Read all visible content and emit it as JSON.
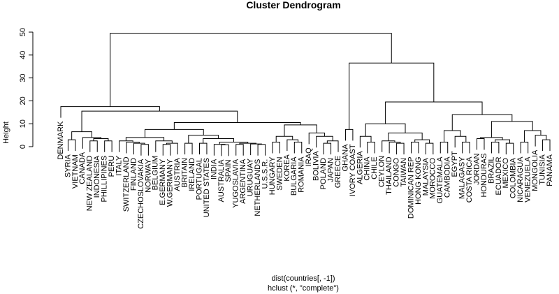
{
  "chart_data": {
    "type": "dendrogram",
    "title": "Cluster Dendrogram",
    "y_label": "Height",
    "x_label": "dist(countries[, -1])",
    "x_sublabel": "hclust (*, \"complete\")",
    "ylim": [
      0,
      50
    ],
    "yticks": [
      0,
      10,
      20,
      30,
      40,
      50
    ],
    "tree": {
      "height": 49.5,
      "children": [
        {
          "height": 17.5,
          "children": [
            "DENMARK",
            {
              "height": 15.5,
              "children": [
                {
                  "height": 6.5,
                  "children": [
                    {
                      "height": 3,
                      "children": [
                        "SYRIA",
                        "VIETNAM"
                      ]
                    },
                    {
                      "height": 4,
                      "children": [
                        "CANADA",
                        {
                          "height": 3.5,
                          "children": [
                            {
                              "height": 2.5,
                              "children": [
                                "NEW ZEALAND",
                                "INDONESIA"
                              ]
                            },
                            {
                              "height": 2.5,
                              "children": [
                                "PHILLIPINES",
                                "PERU"
                              ]
                            }
                          ]
                        }
                      ]
                    }
                  ]
                },
                {
                  "height": 10.5,
                  "children": [
                    {
                      "height": 7.5,
                      "children": [
                        {
                          "height": 4,
                          "children": [
                            {
                              "height": 2.5,
                              "children": [
                                "ITALY",
                                {
                                  "height": 2,
                                  "children": [
                                    "SWITZERLAND",
                                    {
                                      "height": 1.5,
                                      "children": [
                                        "FINLAND",
                                        {
                                          "height": 1,
                                          "children": [
                                            "CZECHOSLOVAKIA",
                                            "NORWAY"
                                          ]
                                        }
                                      ]
                                    }
                                  ]
                                }
                              ]
                            },
                            {
                              "height": 2.5,
                              "children": [
                                "BELGIUM",
                                {
                                  "height": 1.5,
                                  "children": [
                                    {
                                      "height": 1,
                                      "children": [
                                        "E.GERMANY",
                                        "W.GERMANY"
                                      ]
                                    },
                                    "AUSTRIA"
                                  ]
                                }
                              ]
                            }
                          ]
                        },
                        {
                          "height": 5,
                          "children": [
                            {
                              "height": 1.5,
                              "children": [
                                "BRITAIN",
                                "IRELAND"
                              ]
                            },
                            {
                              "height": 3.5,
                              "children": [
                                {
                                  "height": 1.5,
                                  "children": [
                                    "PORTUGAL",
                                    "UNITED STATES"
                                  ]
                                },
                                {
                                  "height": 2,
                                  "children": [
                                    {
                                      "height": 1,
                                      "children": [
                                        "INDIA",
                                        {
                                          "height": 0.8,
                                          "children": [
                                            "AUSTRALIA",
                                            "SPAIN"
                                          ]
                                        }
                                      ]
                                    },
                                    {
                                      "height": 1.5,
                                      "children": [
                                        {
                                          "height": 1,
                                          "children": [
                                            "YUGOSLAVIA",
                                            "ARGENTINA"
                                          ]
                                        },
                                        {
                                          "height": 1.2,
                                          "children": [
                                            "URUGUAY",
                                            {
                                              "height": 1,
                                              "children": [
                                                "NETHERLANDS",
                                                "U.S.S.R."
                                              ]
                                            }
                                          ]
                                        }
                                      ]
                                    }
                                  ]
                                }
                              ]
                            }
                          ]
                        }
                      ]
                    },
                    {
                      "height": 9.5,
                      "children": [
                        {
                          "height": 4.5,
                          "children": [
                            {
                              "height": 2,
                              "children": [
                                "HUNGARY",
                                "SWEDEN"
                              ]
                            },
                            {
                              "height": 3,
                              "children": [
                                "KOREA",
                                {
                                  "height": 2,
                                  "children": [
                                    "BULGARIA",
                                    "ROMANIA"
                                  ]
                                }
                              ]
                            }
                          ]
                        },
                        {
                          "height": 6,
                          "children": [
                            "IRAQ",
                            {
                              "height": 4.5,
                              "children": [
                                "BOLIVIA",
                                {
                                  "height": 2.5,
                                  "children": [
                                    {
                                      "height": 1.5,
                                      "children": [
                                        "POLAND",
                                        "JAPAN"
                                      ]
                                    },
                                    "GREECE"
                                  ]
                                }
                              ]
                            }
                          ]
                        }
                      ]
                    }
                  ]
                }
              ]
            }
          ]
        },
        {
          "height": 36.5,
          "children": [
            {
              "height": 7.5,
              "children": [
                "GHANA",
                "IVORY COAST"
              ]
            },
            {
              "height": 19.5,
              "children": [
                {
                  "height": 10,
                  "children": [
                    {
                      "height": 4.5,
                      "children": [
                        "ALGERIA",
                        {
                          "height": 2,
                          "children": [
                            "CHINA",
                            "CHILE"
                          ]
                        }
                      ]
                    },
                    {
                      "height": 6,
                      "children": [
                        {
                          "height": 2.5,
                          "children": [
                            "CEYLON",
                            {
                              "height": 2,
                              "children": [
                                "THAILAND",
                                {
                                  "height": 1.5,
                                  "children": [
                                    "CONGO",
                                    "TAIWAN"
                                  ]
                                }
                              ]
                            }
                          ]
                        },
                        {
                          "height": 3,
                          "children": [
                            {
                              "height": 2,
                              "children": [
                                "DOMINICAN REP",
                                "HONG KONG"
                              ]
                            },
                            {
                              "height": 1.5,
                              "children": [
                                "MALAYSIA",
                                "MOROCCO"
                              ]
                            }
                          ]
                        }
                      ]
                    }
                  ]
                },
                {
                  "height": 14,
                  "children": [
                    {
                      "height": 7,
                      "children": [
                        {
                          "height": 2,
                          "children": [
                            "GUATEMALA",
                            "CAMBODIA"
                          ]
                        },
                        {
                          "height": 4.5,
                          "children": [
                            "EGYPT",
                            {
                              "height": 2,
                              "children": [
                                "MALAGASY",
                                "COSTA RICA"
                              ]
                            }
                          ]
                        }
                      ]
                    },
                    {
                      "height": 11,
                      "children": [
                        {
                          "height": 4,
                          "children": [
                            {
                              "height": 3.5,
                              "children": [
                                "JORDAN",
                                "HONDURAS"
                              ]
                            },
                            {
                              "height": 3,
                              "children": [
                                {
                                  "height": 2,
                                  "children": [
                                    "BRAZIL",
                                    "ECUADOR"
                                  ]
                                },
                                {
                                  "height": 1.5,
                                  "children": [
                                    "MEXICO",
                                    "COLOMBIA"
                                  ]
                                }
                              ]
                            }
                          ]
                        },
                        {
                          "height": 7,
                          "children": [
                            {
                              "height": 2,
                              "children": [
                                "NICARAGUA",
                                "VENEZUELA"
                              ]
                            },
                            {
                              "height": 5,
                              "children": [
                                "MONGOLIA",
                                {
                                  "height": 3,
                                  "children": [
                                    "TUNISIA",
                                    "PANAMA"
                                  ]
                                }
                              ]
                            }
                          ]
                        }
                      ]
                    }
                  ]
                }
              ]
            }
          ]
        }
      ]
    }
  }
}
